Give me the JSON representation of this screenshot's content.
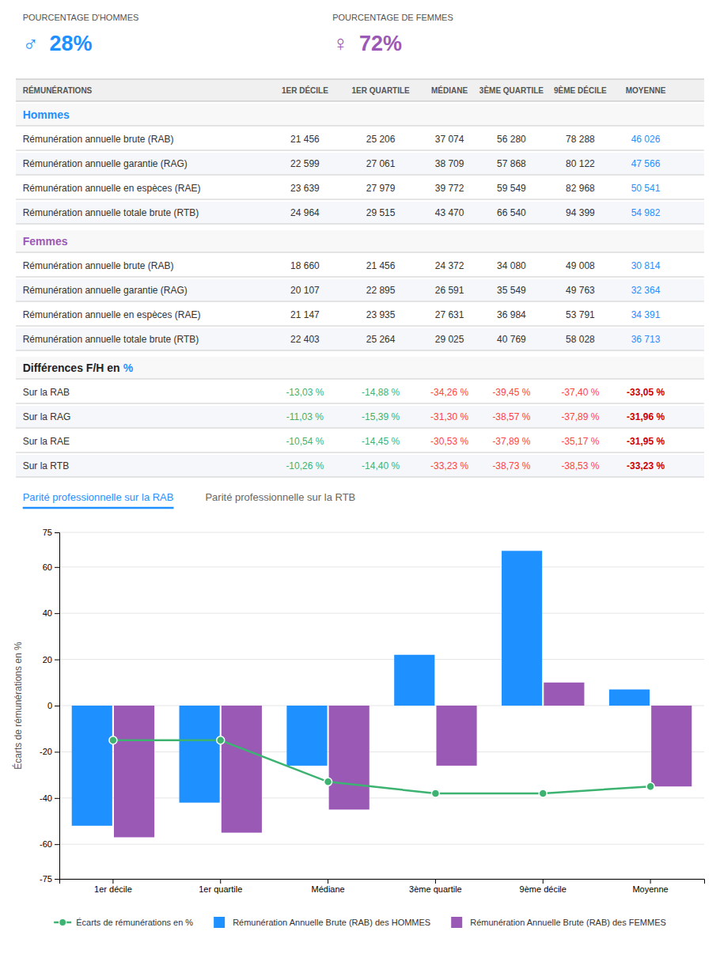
{
  "chart_data": [
    {
      "type": "table",
      "kpis": [
        {
          "name": "POURCENTAGE D'HOMMES",
          "symbol": "♂",
          "value": 28,
          "value_label": "28%",
          "color": "#1e90ff"
        },
        {
          "name": "POURCENTAGE DE FEMMES",
          "symbol": "♀",
          "value": 72,
          "value_label": "72%",
          "color": "#9b59b6"
        }
      ],
      "columns": [
        "RÉMUNÉRATIONS",
        "1ER DÉCILE",
        "1ER QUARTILE",
        "MÉDIANE",
        "3ÈME QUARTILE",
        "9ÈME DÉCILE",
        "MOYENNE"
      ],
      "highlight_color": "#1e90ff",
      "sections": [
        {
          "name": "Hommes",
          "color": "#1e90ff",
          "rows": [
            {
              "label": "Rémunération annuelle brute (RAB)",
              "values": [
                21456,
                25206,
                37074,
                56280,
                78288,
                46026
              ],
              "value_labels": [
                "21 456",
                "25 206",
                "37 074",
                "56 280",
                "78 288",
                "46 026"
              ]
            },
            {
              "label": "Rémunération annuelle garantie (RAG)",
              "values": [
                22599,
                27061,
                38709,
                57868,
                80122,
                47566
              ],
              "value_labels": [
                "22 599",
                "27 061",
                "38 709",
                "57 868",
                "80 122",
                "47 566"
              ]
            },
            {
              "label": "Rémunération annuelle en espèces (RAE)",
              "values": [
                23639,
                27979,
                39772,
                59549,
                82968,
                50541
              ],
              "value_labels": [
                "23 639",
                "27 979",
                "39 772",
                "59 549",
                "82 968",
                "50 541"
              ]
            },
            {
              "label": "Rémunération annuelle totale brute (RTB)",
              "values": [
                24964,
                29515,
                43470,
                66540,
                94399,
                54982
              ],
              "value_labels": [
                "24 964",
                "29 515",
                "43 470",
                "66 540",
                "94 399",
                "54 982"
              ]
            }
          ]
        },
        {
          "name": "Femmes",
          "color": "#9b59b6",
          "rows": [
            {
              "label": "Rémunération annuelle brute (RAB)",
              "values": [
                18660,
                21456,
                24372,
                34080,
                49008,
                30814
              ],
              "value_labels": [
                "18 660",
                "21 456",
                "24 372",
                "34 080",
                "49 008",
                "30 814"
              ]
            },
            {
              "label": "Rémunération annuelle garantie (RAG)",
              "values": [
                20107,
                22895,
                26591,
                35549,
                49763,
                32364
              ],
              "value_labels": [
                "20 107",
                "22 895",
                "26 591",
                "35 549",
                "49 763",
                "32 364"
              ]
            },
            {
              "label": "Rémunération annuelle en espèces (RAE)",
              "values": [
                21147,
                23935,
                27631,
                36984,
                53791,
                34391
              ],
              "value_labels": [
                "21 147",
                "23 935",
                "27 631",
                "36 984",
                "53 791",
                "34 391"
              ]
            },
            {
              "label": "Rémunération annuelle totale brute (RTB)",
              "values": [
                22403,
                25264,
                29025,
                40769,
                58028,
                36713
              ],
              "value_labels": [
                "22 403",
                "25 264",
                "29 025",
                "40 769",
                "58 028",
                "36 713"
              ]
            }
          ]
        },
        {
          "name": "Différences F/H en",
          "color": "#222222",
          "unit": "%",
          "unit_color": "#1e90ff",
          "rows": [
            {
              "label": "Sur la RAB",
              "values": [
                -13.03,
                -14.88,
                -34.26,
                -39.45,
                -37.4,
                -33.05
              ],
              "value_labels": [
                "-13,03 %",
                "-14,88 %",
                "-34,26 %",
                "-39,45 %",
                "-37,40 %",
                "-33,05 %"
              ],
              "colors": [
                "#3cb371",
                "#3cb371",
                "#ff4444",
                "#ff4444",
                "#ff4444",
                "#cc0000"
              ]
            },
            {
              "label": "Sur la RAG",
              "values": [
                -11.03,
                -15.39,
                -31.3,
                -38.57,
                -37.89,
                -31.96
              ],
              "value_labels": [
                "-11,03 %",
                "-15,39 %",
                "-31,30 %",
                "-38,57 %",
                "-37,89 %",
                "-31,96 %"
              ],
              "colors": [
                "#3cb371",
                "#3cb371",
                "#ff4444",
                "#ff4444",
                "#ff4444",
                "#cc0000"
              ]
            },
            {
              "label": "Sur la RAE",
              "values": [
                -10.54,
                -14.45,
                -30.53,
                -37.89,
                -35.17,
                -31.95
              ],
              "value_labels": [
                "-10,54 %",
                "-14,45 %",
                "-30,53 %",
                "-37,89 %",
                "-35,17 %",
                "-31,95 %"
              ],
              "colors": [
                "#3cb371",
                "#3cb371",
                "#ff4444",
                "#ff4444",
                "#ff4444",
                "#cc0000"
              ]
            },
            {
              "label": "Sur la RTB",
              "values": [
                -10.26,
                -14.4,
                -33.23,
                -38.73,
                -38.53,
                -33.23
              ],
              "value_labels": [
                "-10,26 %",
                "-14,40 %",
                "-33,23 %",
                "-38,73 %",
                "-38,53 %",
                "-33,23 %"
              ],
              "colors": [
                "#3cb371",
                "#3cb371",
                "#ff4444",
                "#ff4444",
                "#ff4444",
                "#cc0000"
              ]
            }
          ]
        }
      ],
      "tabs": [
        {
          "name": "Parité professionnelle sur la RAB",
          "color": "#1e90ff"
        },
        {
          "name": "Parité professionnelle sur la RTB"
        }
      ]
    },
    {
      "type": "bar",
      "categories": [
        "1er décile",
        "1er quartile",
        "Médiane",
        "3ème quartile",
        "9ème décile",
        "Moyenne"
      ],
      "series": [
        {
          "name": "Écarts de rémunérations en %",
          "type": "line",
          "marker": "circle",
          "color": "#3cb371",
          "values": [
            -15,
            -15,
            -33,
            -38,
            -38,
            -35
          ]
        },
        {
          "name": "Rémunération Annuelle Brute (RAB) des HOMMES",
          "type": "bar",
          "color": "#1e90ff",
          "values": [
            -52,
            -42,
            -26,
            22,
            67,
            7
          ]
        },
        {
          "name": "Rémunération Annuelle Brute (RAB) des FEMMES",
          "type": "bar",
          "color": "#9b59b6",
          "values": [
            -57,
            -55,
            -45,
            -26,
            10,
            -35
          ]
        }
      ],
      "ylabel": "Écarts de rémunérations en %",
      "ylim": [
        -75,
        75
      ],
      "yticks": [
        -75,
        -60,
        -40,
        -20,
        0,
        20,
        40,
        60,
        75
      ],
      "grid": true,
      "legend": "bottom"
    }
  ]
}
